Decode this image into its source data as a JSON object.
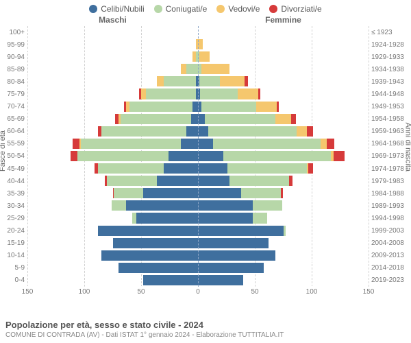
{
  "legend": [
    {
      "label": "Celibi/Nubili",
      "color": "#3f6f9e"
    },
    {
      "label": "Coniugati/e",
      "color": "#b7d7a8"
    },
    {
      "label": "Vedovi/e",
      "color": "#f5c76e"
    },
    {
      "label": "Divorziati/e",
      "color": "#d63a3a"
    }
  ],
  "headers": {
    "left": "Maschi",
    "right": "Femmine"
  },
  "y_label_left": "Fasce di età",
  "y_label_right": "Anni di nascita",
  "x_axis": {
    "max": 150,
    "ticks": [
      150,
      100,
      50,
      0,
      50,
      100,
      150
    ]
  },
  "age_rows": [
    {
      "age": "100+",
      "birth": "≤ 1923",
      "m": [
        0,
        0,
        0,
        0
      ],
      "f": [
        0,
        0,
        0,
        0
      ]
    },
    {
      "age": "95-99",
      "birth": "1924-1928",
      "m": [
        0,
        0,
        2,
        0
      ],
      "f": [
        0,
        0,
        4,
        0
      ]
    },
    {
      "age": "90-94",
      "birth": "1929-1933",
      "m": [
        0,
        2,
        3,
        0
      ],
      "f": [
        0,
        1,
        9,
        0
      ]
    },
    {
      "age": "85-89",
      "birth": "1934-1938",
      "m": [
        0,
        10,
        5,
        0
      ],
      "f": [
        0,
        3,
        25,
        0
      ]
    },
    {
      "age": "80-84",
      "birth": "1939-1943",
      "m": [
        2,
        28,
        6,
        0
      ],
      "f": [
        1,
        18,
        22,
        3
      ]
    },
    {
      "age": "75-79",
      "birth": "1944-1948",
      "m": [
        2,
        44,
        4,
        2
      ],
      "f": [
        2,
        33,
        18,
        2
      ]
    },
    {
      "age": "70-74",
      "birth": "1949-1953",
      "m": [
        5,
        55,
        3,
        2
      ],
      "f": [
        3,
        48,
        18,
        2
      ]
    },
    {
      "age": "65-69",
      "birth": "1954-1958",
      "m": [
        6,
        62,
        2,
        3
      ],
      "f": [
        6,
        62,
        14,
        4
      ]
    },
    {
      "age": "60-64",
      "birth": "1959-1963",
      "m": [
        10,
        75,
        0,
        3
      ],
      "f": [
        9,
        78,
        9,
        5
      ]
    },
    {
      "age": "55-59",
      "birth": "1964-1968",
      "m": [
        15,
        88,
        1,
        6
      ],
      "f": [
        13,
        95,
        5,
        7
      ]
    },
    {
      "age": "50-54",
      "birth": "1969-1973",
      "m": [
        26,
        80,
        0,
        6
      ],
      "f": [
        22,
        95,
        2,
        10
      ]
    },
    {
      "age": "45-49",
      "birth": "1974-1978",
      "m": [
        30,
        58,
        0,
        3
      ],
      "f": [
        26,
        70,
        1,
        4
      ]
    },
    {
      "age": "40-44",
      "birth": "1979-1983",
      "m": [
        36,
        44,
        0,
        2
      ],
      "f": [
        28,
        52,
        0,
        3
      ]
    },
    {
      "age": "35-39",
      "birth": "1984-1988",
      "m": [
        48,
        26,
        0,
        1
      ],
      "f": [
        38,
        35,
        0,
        2
      ]
    },
    {
      "age": "30-34",
      "birth": "1989-1993",
      "m": [
        63,
        13,
        0,
        0
      ],
      "f": [
        48,
        26,
        0,
        0
      ]
    },
    {
      "age": "25-29",
      "birth": "1994-1998",
      "m": [
        54,
        4,
        0,
        0
      ],
      "f": [
        48,
        13,
        0,
        0
      ]
    },
    {
      "age": "20-24",
      "birth": "1999-2003",
      "m": [
        88,
        0,
        0,
        0
      ],
      "f": [
        75,
        2,
        0,
        0
      ]
    },
    {
      "age": "15-19",
      "birth": "2004-2008",
      "m": [
        75,
        0,
        0,
        0
      ],
      "f": [
        62,
        0,
        0,
        0
      ]
    },
    {
      "age": "10-14",
      "birth": "2009-2013",
      "m": [
        85,
        0,
        0,
        0
      ],
      "f": [
        68,
        0,
        0,
        0
      ]
    },
    {
      "age": "5-9",
      "birth": "2014-2018",
      "m": [
        70,
        0,
        0,
        0
      ],
      "f": [
        58,
        0,
        0,
        0
      ]
    },
    {
      "age": "0-4",
      "birth": "2019-2023",
      "m": [
        48,
        0,
        0,
        0
      ],
      "f": [
        40,
        0,
        0,
        0
      ]
    }
  ],
  "colors": {
    "celibi": "#3f6f9e",
    "coniugati": "#b7d7a8",
    "vedovi": "#f5c76e",
    "divorziati": "#d63a3a",
    "grid": "#d0d0d0",
    "center": "#8fa7c7",
    "bg": "#ffffff"
  },
  "title": "Popolazione per età, sesso e stato civile - 2024",
  "subtitle": "COMUNE DI CONTRADA (AV) - Dati ISTAT 1° gennaio 2024 - Elaborazione TUTTITALIA.IT"
}
